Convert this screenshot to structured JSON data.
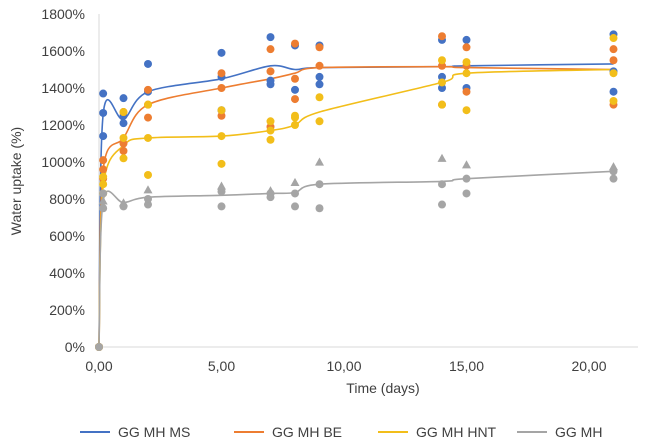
{
  "chart_data": {
    "type": "scatter",
    "xlabel": "Time (days)",
    "ylabel": "Water uptake (%)",
    "xlim": [
      0,
      22
    ],
    "ylim": [
      0,
      1800
    ],
    "xticks": [
      0,
      5,
      10,
      15,
      20
    ],
    "xtick_labels": [
      "0,00",
      "5,00",
      "10,00",
      "15,00",
      "20,00"
    ],
    "yticks": [
      0,
      200,
      400,
      600,
      800,
      1000,
      1200,
      1400,
      1600,
      1800
    ],
    "ytick_labels": [
      "0%",
      "200%",
      "400%",
      "600%",
      "800%",
      "1000%",
      "1200%",
      "1400%",
      "1600%",
      "1800%"
    ],
    "grid": false,
    "legend_position": "bottom",
    "series": [
      {
        "name": "GG MH MS",
        "color": "#4472C4",
        "marker": "circle",
        "curve": [
          [
            0,
            0
          ],
          [
            0.17,
            1260
          ],
          [
            1,
            1230
          ],
          [
            2,
            1380
          ],
          [
            5,
            1450
          ],
          [
            7,
            1520
          ],
          [
            8,
            1500
          ],
          [
            9,
            1510
          ],
          [
            14,
            1515
          ],
          [
            15,
            1520
          ],
          [
            21,
            1530
          ]
        ],
        "points": [
          [
            0,
            0
          ],
          [
            0.17,
            1140
          ],
          [
            0.17,
            1265
          ],
          [
            0.17,
            1370
          ],
          [
            1,
            1210
          ],
          [
            1,
            1250
          ],
          [
            1,
            1345
          ],
          [
            2,
            1380
          ],
          [
            2,
            1530
          ],
          [
            5,
            1280
          ],
          [
            5,
            1460
          ],
          [
            5,
            1590
          ],
          [
            7,
            1420
          ],
          [
            7,
            1440
          ],
          [
            7,
            1675
          ],
          [
            8,
            1390
          ],
          [
            8,
            1630
          ],
          [
            9,
            1420
          ],
          [
            9,
            1460
          ],
          [
            9,
            1630
          ],
          [
            14,
            1400
          ],
          [
            14,
            1460
          ],
          [
            14,
            1660
          ],
          [
            15,
            1400
          ],
          [
            15,
            1660
          ],
          [
            21,
            1380
          ],
          [
            21,
            1490
          ],
          [
            21,
            1690
          ]
        ]
      },
      {
        "name": "GG MH BE",
        "color": "#ED7D31",
        "marker": "circle",
        "curve": [
          [
            0,
            0
          ],
          [
            0.17,
            960
          ],
          [
            1,
            1130
          ],
          [
            2,
            1310
          ],
          [
            5,
            1400
          ],
          [
            7,
            1450
          ],
          [
            8,
            1480
          ],
          [
            9,
            1510
          ],
          [
            14,
            1515
          ],
          [
            15,
            1510
          ],
          [
            21,
            1500
          ]
        ],
        "points": [
          [
            0,
            0
          ],
          [
            0.17,
            910
          ],
          [
            0.17,
            960
          ],
          [
            0.17,
            1010
          ],
          [
            1,
            1060
          ],
          [
            1,
            1100
          ],
          [
            1,
            1270
          ],
          [
            2,
            1240
          ],
          [
            2,
            1310
          ],
          [
            2,
            1390
          ],
          [
            5,
            1250
          ],
          [
            5,
            1400
          ],
          [
            5,
            1480
          ],
          [
            7,
            1190
          ],
          [
            7,
            1490
          ],
          [
            7,
            1610
          ],
          [
            8,
            1340
          ],
          [
            8,
            1450
          ],
          [
            8,
            1640
          ],
          [
            9,
            1520
          ],
          [
            9,
            1620
          ],
          [
            14,
            1310
          ],
          [
            14,
            1520
          ],
          [
            14,
            1680
          ],
          [
            15,
            1380
          ],
          [
            15,
            1520
          ],
          [
            15,
            1620
          ],
          [
            21,
            1310
          ],
          [
            21,
            1550
          ],
          [
            21,
            1610
          ]
        ]
      },
      {
        "name": "GG MH HNT",
        "color": "#F2BE1A",
        "marker": "circle",
        "curve": [
          [
            0,
            0
          ],
          [
            0.17,
            870
          ],
          [
            1,
            1090
          ],
          [
            2,
            1130
          ],
          [
            5,
            1140
          ],
          [
            7,
            1170
          ],
          [
            8,
            1200
          ],
          [
            9,
            1270
          ],
          [
            14,
            1430
          ],
          [
            15,
            1480
          ],
          [
            21,
            1500
          ]
        ],
        "points": [
          [
            0,
            0
          ],
          [
            0.17,
            830
          ],
          [
            0.17,
            880
          ],
          [
            0.17,
            920
          ],
          [
            1,
            1020
          ],
          [
            1,
            1130
          ],
          [
            1,
            1270
          ],
          [
            2,
            930
          ],
          [
            2,
            1130
          ],
          [
            2,
            1310
          ],
          [
            5,
            990
          ],
          [
            5,
            1140
          ],
          [
            5,
            1280
          ],
          [
            7,
            1120
          ],
          [
            7,
            1170
          ],
          [
            7,
            1220
          ],
          [
            8,
            1200
          ],
          [
            8,
            1240
          ],
          [
            8,
            1250
          ],
          [
            9,
            1220
          ],
          [
            9,
            1350
          ],
          [
            14,
            1310
          ],
          [
            14,
            1430
          ],
          [
            14,
            1550
          ],
          [
            15,
            1280
          ],
          [
            15,
            1480
          ],
          [
            15,
            1540
          ],
          [
            21,
            1330
          ],
          [
            21,
            1480
          ],
          [
            21,
            1670
          ]
        ]
      },
      {
        "name": "GG MH",
        "color": "#A5A5A5",
        "marker": "mixed",
        "curve": [
          [
            0,
            0
          ],
          [
            0.17,
            790
          ],
          [
            1,
            780
          ],
          [
            2,
            810
          ],
          [
            5,
            820
          ],
          [
            7,
            830
          ],
          [
            8,
            835
          ],
          [
            9,
            880
          ],
          [
            14,
            895
          ],
          [
            15,
            910
          ],
          [
            21,
            950
          ]
        ],
        "points": [
          [
            0,
            0
          ],
          [
            0.17,
            750
          ],
          [
            0.17,
            790
          ],
          [
            0.17,
            830
          ],
          [
            1,
            760
          ],
          [
            1,
            780
          ],
          [
            2,
            770
          ],
          [
            2,
            800
          ],
          [
            2,
            850
          ],
          [
            5,
            760
          ],
          [
            5,
            840
          ],
          [
            5,
            870
          ],
          [
            7,
            810
          ],
          [
            7,
            830
          ],
          [
            7,
            845
          ],
          [
            8,
            760
          ],
          [
            8,
            830
          ],
          [
            8,
            890
          ],
          [
            9,
            750
          ],
          [
            9,
            880
          ],
          [
            9,
            1000
          ],
          [
            14,
            770
          ],
          [
            14,
            880
          ],
          [
            14,
            1020
          ],
          [
            15,
            830
          ],
          [
            15,
            910
          ],
          [
            15,
            985
          ],
          [
            21,
            910
          ],
          [
            21,
            950
          ],
          [
            21,
            975
          ]
        ]
      }
    ]
  }
}
